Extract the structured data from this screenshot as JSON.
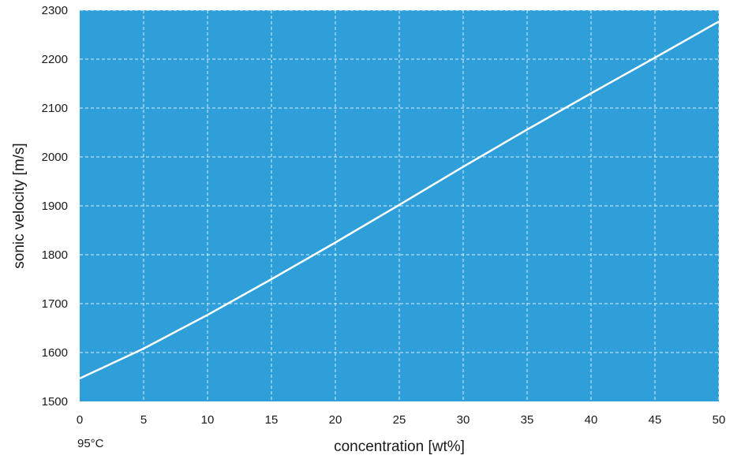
{
  "chart_data": {
    "type": "line",
    "title": "",
    "xlabel": "concentration [wt%]",
    "ylabel": "sonic velocity  [m/s]",
    "annotation": "95°C",
    "xlim": [
      0,
      50
    ],
    "ylim": [
      1500,
      2300
    ],
    "xticks": [
      0,
      5,
      10,
      15,
      20,
      25,
      30,
      35,
      40,
      45,
      50
    ],
    "yticks": [
      1500,
      1600,
      1700,
      1800,
      1900,
      2000,
      2100,
      2200,
      2300
    ],
    "grid": true,
    "legend": "none",
    "colors": {
      "plot_background": "#2e9fd8",
      "line": "#ffffff",
      "grid": "#d8eef9"
    },
    "series": [
      {
        "x": [
          0,
          5,
          10,
          15,
          20,
          25,
          30,
          35,
          40,
          45,
          50
        ],
        "y": [
          1547,
          1608,
          1677,
          1750,
          1825,
          1902,
          1980,
          2056,
          2130,
          2203,
          2277
        ]
      }
    ]
  }
}
